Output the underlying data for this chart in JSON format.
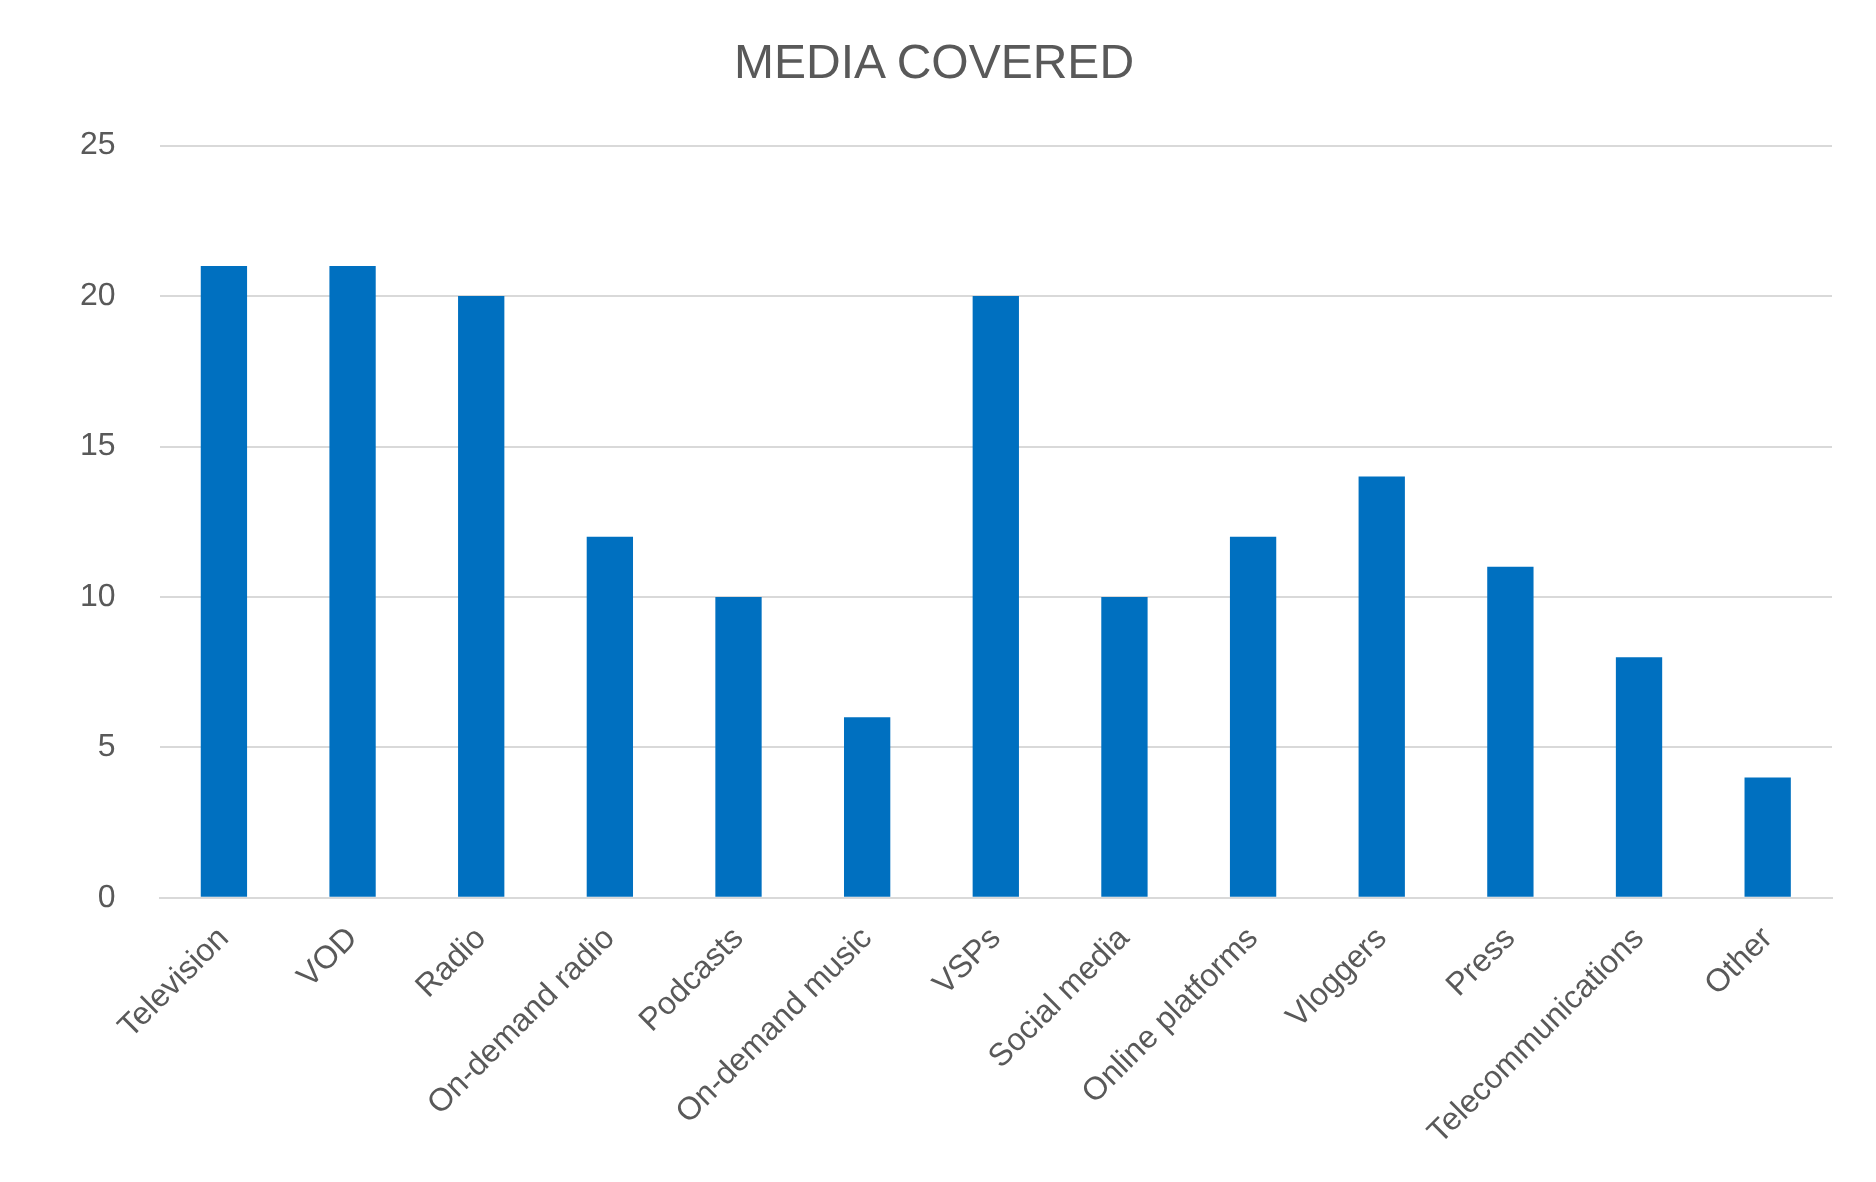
{
  "chart_data": {
    "type": "bar",
    "title": "MEDIA COVERED",
    "categories": [
      "Television",
      "VOD",
      "Radio",
      "On-demand radio",
      "Podcasts",
      "On-demand music",
      "VSPs",
      "Social media",
      "Online platforms",
      "Vloggers",
      "Press",
      "Telecommunications",
      "Other"
    ],
    "values": [
      21,
      21,
      20,
      12,
      10,
      6,
      20,
      10,
      12,
      14,
      11,
      8,
      4
    ],
    "color": "#0070c0",
    "ylim": [
      0,
      25
    ],
    "yticks": [
      0,
      5,
      10,
      15,
      20,
      25
    ],
    "grid": "y"
  }
}
